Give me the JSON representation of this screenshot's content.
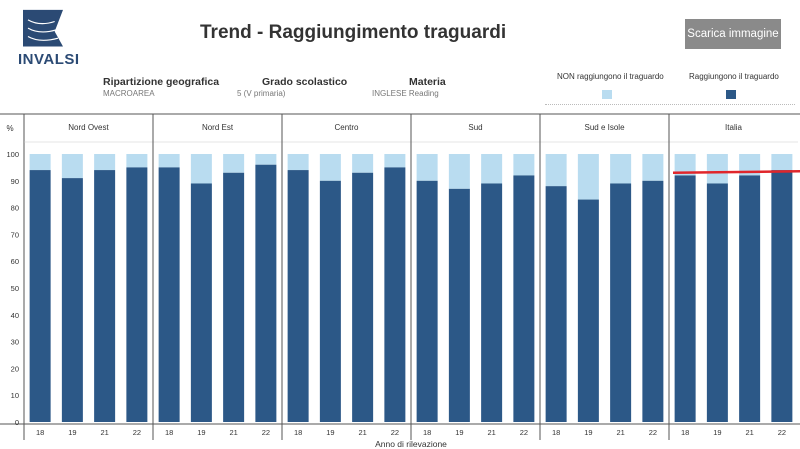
{
  "header": {
    "logo_text": "INVALSI",
    "title": "Trend - Raggiungimento traguardi",
    "download_label": "Scarica immagine"
  },
  "filters": [
    {
      "label": "Ripartizione geografica",
      "value": "MACROAREA"
    },
    {
      "label": "Grado scolastico",
      "value": "5 (V primaria)"
    },
    {
      "label": "Materia",
      "value": "INGLESE Reading"
    }
  ],
  "legend": [
    {
      "label": "NON raggiungono il traguardo",
      "color": "#b9dcf0"
    },
    {
      "label": "Raggiungono il traguardo",
      "color": "#2c5887"
    }
  ],
  "chart_data": {
    "type": "bar",
    "stacked": true,
    "ylabel": "%",
    "xlabel": "Anno di rilevazione",
    "ylim": [
      0,
      100
    ],
    "yticks": [
      0,
      10,
      20,
      30,
      40,
      50,
      60,
      70,
      80,
      90,
      100
    ],
    "reference_line": {
      "value": 93,
      "color": "#e0262b"
    },
    "panels": [
      {
        "name": "Nord Ovest",
        "categories": [
          "18",
          "19",
          "21",
          "22"
        ],
        "reached": [
          94,
          91,
          94,
          95
        ]
      },
      {
        "name": "Nord Est",
        "categories": [
          "18",
          "19",
          "21",
          "22"
        ],
        "reached": [
          95,
          89,
          93,
          96
        ]
      },
      {
        "name": "Centro",
        "categories": [
          "18",
          "19",
          "21",
          "22"
        ],
        "reached": [
          94,
          90,
          93,
          95
        ]
      },
      {
        "name": "Sud",
        "categories": [
          "18",
          "19",
          "21",
          "22"
        ],
        "reached": [
          90,
          87,
          89,
          92
        ]
      },
      {
        "name": "Sud e Isole",
        "categories": [
          "18",
          "19",
          "21",
          "22"
        ],
        "reached": [
          88,
          83,
          89,
          90
        ]
      },
      {
        "name": "Italia",
        "categories": [
          "18",
          "19",
          "21",
          "22"
        ],
        "reached": [
          92,
          89,
          92,
          94
        ]
      }
    ]
  }
}
